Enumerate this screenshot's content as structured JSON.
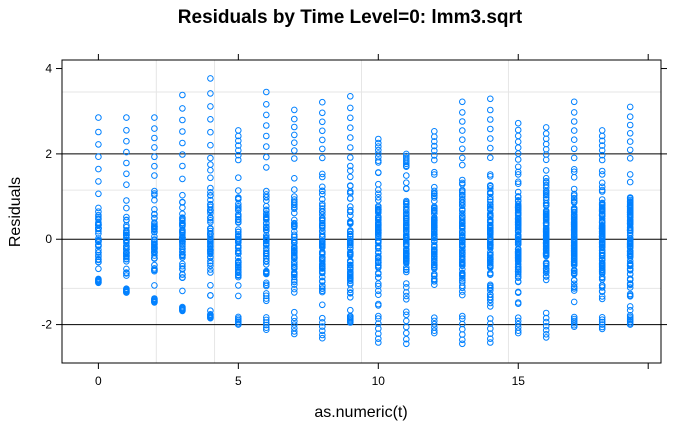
{
  "chart_data": {
    "type": "scatter",
    "title": "Residuals by Time Level=0: lmm3.sqrt",
    "xlabel": "as.numeric(t)",
    "ylabel": "Residuals",
    "xlim": [
      -1.3,
      20.1
    ],
    "ylim": [
      -2.9,
      4.2
    ],
    "x_ticks": [
      0,
      5,
      10,
      15
    ],
    "y_ticks": [
      -2,
      0,
      2,
      4
    ],
    "reference_lines": [
      -2,
      0,
      2
    ],
    "grid": true,
    "point_color": "#0080ff",
    "series": [
      {
        "x": [
          0,
          1,
          2,
          3,
          4,
          5,
          6,
          7,
          8,
          9,
          10,
          11,
          12,
          13,
          14,
          15,
          16,
          17,
          18,
          19
        ],
        "y_max": [
          2.85,
          2.85,
          2.85,
          3.38,
          3.77,
          2.55,
          3.45,
          3.03,
          3.21,
          3.35,
          2.35,
          2.0,
          2.53,
          3.22,
          3.29,
          2.72,
          2.62,
          3.22,
          2.55,
          3.1
        ],
        "y_min": [
          -1.02,
          -1.25,
          -1.48,
          -1.68,
          -1.85,
          -2.0,
          -2.12,
          -2.22,
          -2.32,
          -1.95,
          -2.42,
          -2.45,
          -2.2,
          -2.45,
          -2.42,
          -2.2,
          -2.3,
          -2.05,
          -2.1,
          -2.0
        ]
      }
    ]
  }
}
